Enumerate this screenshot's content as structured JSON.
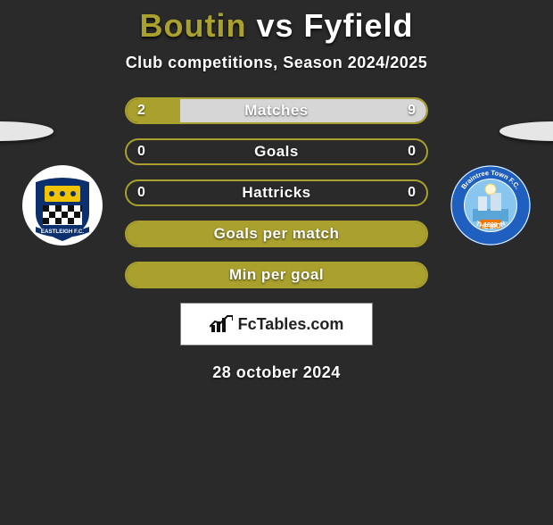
{
  "colors": {
    "background": "#2a2a2a",
    "accent": "#a9a02d",
    "fill_right": "#d6d6d6",
    "text": "#ffffff"
  },
  "title": {
    "player1": "Boutin",
    "vs": "vs",
    "player2": "Fyfield"
  },
  "subtitle": "Club competitions, Season 2024/2025",
  "rows": [
    {
      "label": "Matches",
      "left": "2",
      "right": "9",
      "left_pct": 18,
      "right_pct": 82,
      "show_vals": true,
      "full_accent": false
    },
    {
      "label": "Goals",
      "left": "0",
      "right": "0",
      "left_pct": 0,
      "right_pct": 0,
      "show_vals": true,
      "full_accent": false
    },
    {
      "label": "Hattricks",
      "left": "0",
      "right": "0",
      "left_pct": 0,
      "right_pct": 0,
      "show_vals": true,
      "full_accent": false
    },
    {
      "label": "Goals per match",
      "left": "",
      "right": "",
      "left_pct": 0,
      "right_pct": 0,
      "show_vals": false,
      "full_accent": true
    },
    {
      "label": "Min per goal",
      "left": "",
      "right": "",
      "left_pct": 0,
      "right_pct": 0,
      "show_vals": false,
      "full_accent": true
    }
  ],
  "brand": "FcTables.com",
  "date": "28 october 2024",
  "crest_left": {
    "name": "Eastleigh FC",
    "ring": "#ffffff",
    "inner": "#0c2f6e",
    "accent": "#f2c400",
    "text": "EASTLEIGH F.C."
  },
  "crest_right": {
    "name": "Braintree Town FC",
    "ring": "#1f5fbf",
    "inner": "#89c6ef",
    "accent": "#f07800",
    "text": "Braintree Town F.C.",
    "sub": "1898",
    "motto": "THE IRON"
  }
}
